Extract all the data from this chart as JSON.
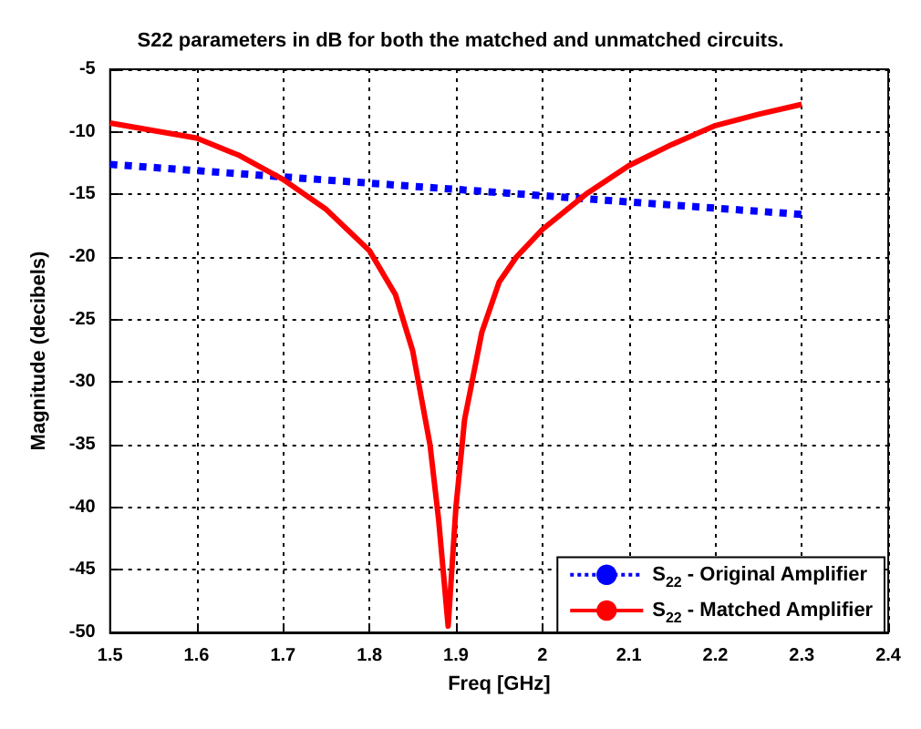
{
  "chart_data": {
    "type": "line",
    "title": "S22 parameters in dB for both the matched and unmatched circuits.",
    "xlabel": "Freq [GHz]",
    "ylabel": "Magnitude (decibels)",
    "xlim": [
      1.5,
      2.4
    ],
    "xticks": [
      1.5,
      1.6,
      1.7,
      1.8,
      1.9,
      2,
      2.1,
      2.2,
      2.3,
      2.4
    ],
    "ylim": [
      -50,
      -5
    ],
    "yticks": [
      -50,
      -45,
      -40,
      -35,
      -30,
      -25,
      -20,
      -15,
      -10,
      -5
    ],
    "grid": true,
    "legend": "bottom right",
    "marker": "none",
    "series": [
      {
        "name": "S$_{22}$ - Original Amplifier",
        "color": "#0000ff",
        "line_style": "dotted",
        "x": [
          1.5,
          1.7,
          1.9,
          2.1,
          2.3
        ],
        "values": [
          -12.6,
          -13.6,
          -14.6,
          -15.6,
          -16.6
        ]
      },
      {
        "name": "S$_{22}$ - Matched Amplifier",
        "color": "#ff0000",
        "line_style": "solid",
        "x": [
          1.5,
          1.6,
          1.65,
          1.7,
          1.75,
          1.8,
          1.83,
          1.85,
          1.87,
          1.88,
          1.891,
          1.9,
          1.91,
          1.93,
          1.95,
          1.97,
          2,
          2.05,
          2.1,
          2.15,
          2.2,
          2.25,
          2.3
        ],
        "values": [
          -9.3,
          -10.5,
          -11.9,
          -13.8,
          -16.2,
          -19.5,
          -23,
          -27.5,
          -35,
          -41,
          -49.5,
          -40,
          -33,
          -26,
          -22,
          -20,
          -17.8,
          -15,
          -12.7,
          -11,
          -9.5,
          -8.6,
          -7.8
        ]
      }
    ]
  }
}
